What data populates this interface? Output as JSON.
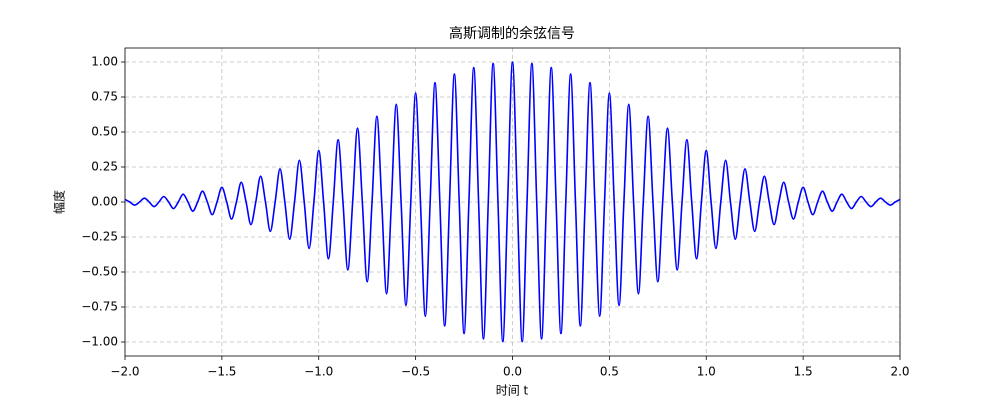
{
  "chart_data": {
    "type": "line",
    "title": "高斯调制的余弦信号",
    "xlabel": "时间 t",
    "ylabel": "幅度",
    "color": "#0000ff",
    "grid": true,
    "xlim": [
      -2,
      2
    ],
    "ylim": [
      -1.1,
      1.1
    ],
    "xticks": [
      {
        "value": -2,
        "label": "−2.0"
      },
      {
        "value": -1.5,
        "label": "−1.5"
      },
      {
        "value": -1,
        "label": "−1.0"
      },
      {
        "value": -0.5,
        "label": "−0.5"
      },
      {
        "value": 0,
        "label": "0.0"
      },
      {
        "value": 0.5,
        "label": "0.5"
      },
      {
        "value": 1,
        "label": "1.0"
      },
      {
        "value": 1.5,
        "label": "1.5"
      },
      {
        "value": 2,
        "label": "2.0"
      }
    ],
    "yticks": [
      {
        "value": -1,
        "label": "−1.00"
      },
      {
        "value": -0.75,
        "label": "−0.75"
      },
      {
        "value": -0.5,
        "label": "−0.50"
      },
      {
        "value": -0.25,
        "label": "−0.25"
      },
      {
        "value": 0,
        "label": "0.00"
      },
      {
        "value": 0.25,
        "label": "0.25"
      },
      {
        "value": 0.5,
        "label": "0.50"
      },
      {
        "value": 0.75,
        "label": "0.75"
      },
      {
        "value": 1,
        "label": "1.00"
      }
    ],
    "x": [
      -2,
      -1.975,
      -1.95,
      -1.925,
      -1.9,
      -1.875,
      -1.85,
      -1.825,
      -1.8,
      -1.775,
      -1.75,
      -1.725,
      -1.7,
      -1.675,
      -1.65,
      -1.625,
      -1.6,
      -1.575,
      -1.55,
      -1.525,
      -1.5,
      -1.475,
      -1.45,
      -1.425,
      -1.4,
      -1.375,
      -1.35,
      -1.325,
      -1.3,
      -1.275,
      -1.25,
      -1.225,
      -1.2,
      -1.175,
      -1.15,
      -1.125,
      -1.1,
      -1.075,
      -1.05,
      -1.025,
      -1,
      -0.975,
      -0.95,
      -0.925,
      -0.9,
      -0.875,
      -0.85,
      -0.825,
      -0.8,
      -0.775,
      -0.75,
      -0.725,
      -0.7,
      -0.675,
      -0.65,
      -0.625,
      -0.6,
      -0.575,
      -0.55,
      -0.525,
      -0.5,
      -0.475,
      -0.45,
      -0.425,
      -0.4,
      -0.375,
      -0.35,
      -0.325,
      -0.3,
      -0.275,
      -0.25,
      -0.225,
      -0.2,
      -0.175,
      -0.15,
      -0.125,
      -0.1,
      -0.075,
      -0.05,
      -0.025,
      0,
      0.025,
      0.05,
      0.075,
      0.1,
      0.125,
      0.15,
      0.175,
      0.2,
      0.225,
      0.25,
      0.275,
      0.3,
      0.325,
      0.35,
      0.375,
      0.4,
      0.425,
      0.45,
      0.475,
      0.5,
      0.525,
      0.55,
      0.575,
      0.6,
      0.625,
      0.65,
      0.675,
      0.7,
      0.725,
      0.75,
      0.775,
      0.8,
      0.825,
      0.85,
      0.875,
      0.9,
      0.925,
      0.95,
      0.975,
      1,
      1.025,
      1.05,
      1.075,
      1.1,
      1.125,
      1.15,
      1.175,
      1.2,
      1.225,
      1.25,
      1.275,
      1.3,
      1.325,
      1.35,
      1.375,
      1.4,
      1.425,
      1.45,
      1.475,
      1.5,
      1.525,
      1.55,
      1.575,
      1.6,
      1.625,
      1.65,
      1.675,
      1.7,
      1.725,
      1.75,
      1.775,
      1.8,
      1.825,
      1.85,
      1.875,
      1.9,
      1.925,
      1.95,
      1.975,
      2
    ],
    "values": [
      0.0183,
      0,
      -0.0223,
      0,
      0.0271,
      0,
      -0.0326,
      0,
      0.0392,
      0,
      -0.0468,
      0,
      0.0556,
      0,
      -0.0657,
      0,
      0.0773,
      0,
      -0.0905,
      0,
      0.1054,
      0,
      -0.1221,
      0,
      0.1409,
      0,
      -0.1616,
      0,
      0.1845,
      0,
      -0.2096,
      0,
      0.2369,
      0,
      -0.2665,
      0,
      0.2982,
      0,
      -0.332,
      0,
      0.3679,
      0,
      -0.4056,
      0,
      0.4449,
      0,
      -0.4855,
      0,
      0.5273,
      0,
      -0.5698,
      0,
      0.6126,
      0,
      -0.6554,
      0,
      0.6977,
      0,
      -0.739,
      0,
      0.7788,
      0,
      -0.8167,
      0,
      0.8521,
      0,
      -0.8847,
      0,
      0.9139,
      0,
      -0.9394,
      0,
      0.9608,
      0,
      -0.9778,
      0,
      0.99,
      0,
      -0.9975,
      0,
      1,
      0,
      -0.9975,
      0,
      0.99,
      0,
      -0.9778,
      0,
      0.9608,
      0,
      -0.9394,
      0,
      0.9139,
      0,
      -0.8847,
      0,
      0.8521,
      0,
      -0.8167,
      0,
      0.7788,
      0,
      -0.739,
      0,
      0.6977,
      0,
      -0.6554,
      0,
      0.6126,
      0,
      -0.5698,
      0,
      0.5273,
      0,
      -0.4855,
      0,
      0.4449,
      0,
      -0.4056,
      0,
      0.3679,
      0,
      -0.332,
      0,
      0.2982,
      0,
      -0.2665,
      0,
      0.2369,
      0,
      -0.2096,
      0,
      0.1845,
      0,
      -0.1616,
      0,
      0.1409,
      0,
      -0.1221,
      0,
      0.1054,
      0,
      -0.0905,
      0,
      0.0773,
      0,
      -0.0657,
      0,
      0.0556,
      0,
      -0.0468,
      0,
      0.0392,
      0,
      -0.0326,
      0,
      0.0271,
      0,
      -0.0223,
      0,
      0.0183
    ]
  }
}
